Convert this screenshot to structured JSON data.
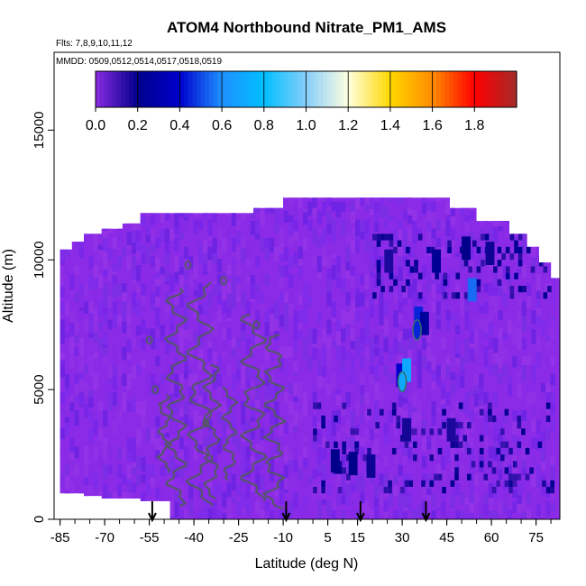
{
  "chart_data": {
    "type": "heatmap",
    "title": "ATOM4 Northbound Nitrate_PM1_AMS",
    "subtitle_lines": [
      "Flts: 7,8,9,10,11,12",
      "MMDD: 0509,0512,0514,0517,0518,0519"
    ],
    "xlabel": "Latitude (deg N)",
    "ylabel": "Altitude (m)",
    "xlim": [
      -87,
      83
    ],
    "ylim": [
      0,
      18000
    ],
    "x_ticks": [
      -85,
      -70,
      -55,
      -40,
      -25,
      -10,
      5,
      15,
      30,
      45,
      60,
      75
    ],
    "y_ticks": [
      0,
      5000,
      10000,
      15000
    ],
    "colorbar": {
      "range": [
        0.0,
        2.0
      ],
      "ticks": [
        0.0,
        0.2,
        0.4,
        0.6,
        0.8,
        1.0,
        1.2,
        1.4,
        1.6,
        1.8
      ],
      "tick_labels": [
        "0.0",
        "0.2",
        "0.4",
        "0.6",
        "0.8",
        "1.0",
        "1.2",
        "1.4",
        "1.6",
        "1.8"
      ],
      "colors": [
        "#8a2be2",
        "#00008b",
        "#0000cd",
        "#1e90ff",
        "#00bfff",
        "#87cefa",
        "#ffffe0",
        "#ffd700",
        "#ff8c00",
        "#ff0000",
        "#a52a2a"
      ]
    },
    "flight_arrows_lat": [
      -54,
      -9,
      16,
      38
    ],
    "background_value": 0.05,
    "background_color": "#8b2be8",
    "coverage_envelope": [
      {
        "lat": -85,
        "alt_min": 1000,
        "alt_max": 10400
      },
      {
        "lat": -81,
        "alt_min": 1000,
        "alt_max": 10700
      },
      {
        "lat": -77,
        "alt_min": 900,
        "alt_max": 11000
      },
      {
        "lat": -71,
        "alt_min": 800,
        "alt_max": 11200
      },
      {
        "lat": -64,
        "alt_min": 800,
        "alt_max": 11400
      },
      {
        "lat": -58,
        "alt_min": 700,
        "alt_max": 11800
      },
      {
        "lat": -48,
        "alt_min": 0,
        "alt_max": 11800
      },
      {
        "lat": -30,
        "alt_min": 0,
        "alt_max": 11800
      },
      {
        "lat": -20,
        "alt_min": 0,
        "alt_max": 12000
      },
      {
        "lat": -10,
        "alt_min": 0,
        "alt_max": 12400
      },
      {
        "lat": 10,
        "alt_min": 0,
        "alt_max": 12400
      },
      {
        "lat": 30,
        "alt_min": 0,
        "alt_max": 12400
      },
      {
        "lat": 40,
        "alt_min": 0,
        "alt_max": 12400
      },
      {
        "lat": 46,
        "alt_min": 0,
        "alt_max": 12000
      },
      {
        "lat": 55,
        "alt_min": 0,
        "alt_max": 11500
      },
      {
        "lat": 66,
        "alt_min": 0,
        "alt_max": 11000
      },
      {
        "lat": 72,
        "alt_min": 0,
        "alt_max": 10500
      },
      {
        "lat": 76,
        "alt_min": 0,
        "alt_max": 9900
      },
      {
        "lat": 80,
        "alt_min": 0,
        "alt_max": 9300
      }
    ],
    "high_value_cells": [
      {
        "lat": 28,
        "alt": 5100,
        "value": 0.4
      },
      {
        "lat": 30,
        "alt": 5300,
        "value": 0.7
      },
      {
        "lat": 34,
        "alt": 7300,
        "value": 0.45
      },
      {
        "lat": 36,
        "alt": 7100,
        "value": 0.25
      },
      {
        "lat": 52,
        "alt": 8400,
        "value": 0.55
      },
      {
        "lat": 6,
        "alt": 1800,
        "value": 0.2
      },
      {
        "lat": 12,
        "alt": 1700,
        "value": 0.2
      },
      {
        "lat": 18,
        "alt": 1600,
        "value": 0.18
      },
      {
        "lat": 40,
        "alt": 9500,
        "value": 0.22
      },
      {
        "lat": 50,
        "alt": 10000,
        "value": 0.2
      },
      {
        "lat": 58,
        "alt": 9800,
        "value": 0.18
      },
      {
        "lat": 24,
        "alt": 9500,
        "value": 0.16
      },
      {
        "lat": 30,
        "alt": 3000,
        "value": 0.17
      },
      {
        "lat": 45,
        "alt": 3000,
        "value": 0.16
      }
    ],
    "contour_value": 0.1
  }
}
